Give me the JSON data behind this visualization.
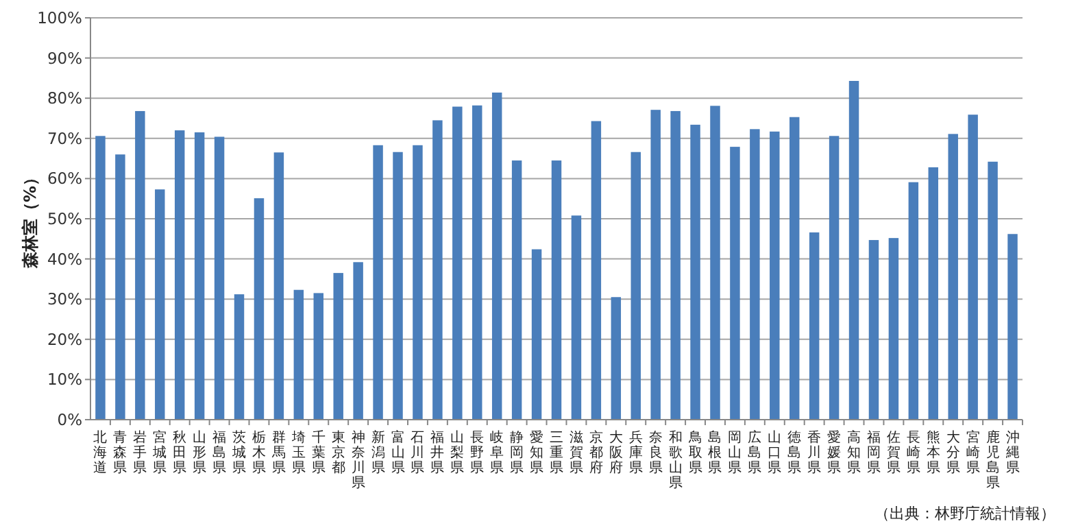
{
  "chart_data": {
    "type": "bar",
    "ylabel": "森林室（%）",
    "annotations": [
      "（出典：林野庁統計情報）"
    ],
    "categories": [
      "北海道",
      "青森県",
      "岩手県",
      "宮城県",
      "秋田県",
      "山形県",
      "福島県",
      "茨城県",
      "栃木県",
      "群馬県",
      "埼玉県",
      "千葉県",
      "東京都",
      "神奈川県",
      "新潟県",
      "富山県",
      "石川県",
      "福井県",
      "山梨県",
      "長野県",
      "岐阜県",
      "静岡県",
      "愛知県",
      "三重県",
      "滋賀県",
      "京都府",
      "大阪府",
      "兵庫県",
      "奈良県",
      "和歌山県",
      "鳥取県",
      "島根県",
      "岡山県",
      "広島県",
      "山口県",
      "徳島県",
      "香川県",
      "愛媛県",
      "高知県",
      "福岡県",
      "佐賀県",
      "長崎県",
      "熊本県",
      "大分県",
      "宮崎県",
      "鹿児島県",
      "沖縄県"
    ],
    "values": [
      70.6,
      66.0,
      76.8,
      57.3,
      72.0,
      71.5,
      70.4,
      31.2,
      55.1,
      66.5,
      32.3,
      31.5,
      36.5,
      39.2,
      68.3,
      66.6,
      68.3,
      74.5,
      77.9,
      78.2,
      81.4,
      64.5,
      42.4,
      64.5,
      50.8,
      74.3,
      30.5,
      66.6,
      77.1,
      76.8,
      73.4,
      78.1,
      67.9,
      72.3,
      71.7,
      75.3,
      46.6,
      70.6,
      84.3,
      44.7,
      45.2,
      59.1,
      62.8,
      71.1,
      75.9,
      64.2,
      46.2
    ],
    "color": "#4a7ebb",
    "ylim": [
      0,
      100
    ],
    "yticks": [
      {
        "value": 0,
        "label": "0%"
      },
      {
        "value": 10,
        "label": "10%"
      },
      {
        "value": 20,
        "label": "20%"
      },
      {
        "value": 30,
        "label": "30%"
      },
      {
        "value": 40,
        "label": "40%"
      },
      {
        "value": 50,
        "label": "50%"
      },
      {
        "value": 60,
        "label": "60%"
      },
      {
        "value": 70,
        "label": "70%"
      },
      {
        "value": 80,
        "label": "80%"
      },
      {
        "value": 90,
        "label": "90%"
      },
      {
        "value": 100,
        "label": "100%"
      }
    ],
    "grid": "y"
  }
}
